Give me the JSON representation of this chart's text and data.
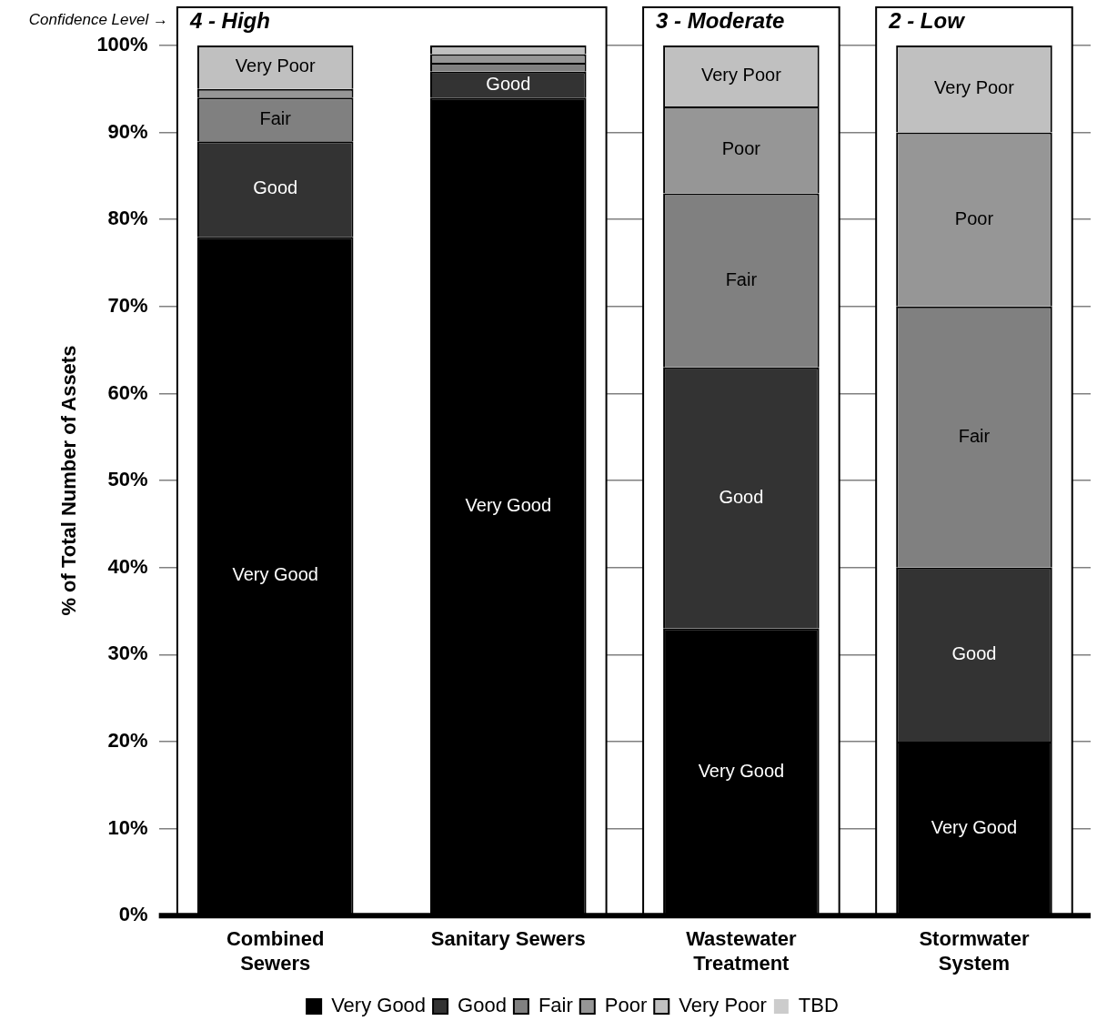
{
  "chart_data": {
    "type": "bar",
    "stacked": true,
    "ylabel": "% of Total Number of Assets",
    "categories": [
      "Combined Sewers",
      "Sanitary Sewers",
      "Wastewater Treatment",
      "Stormwater System"
    ],
    "series": [
      {
        "name": "Very Good",
        "color": "#000000",
        "values": [
          78,
          94,
          33,
          20
        ],
        "value_labels": [
          "Very Good",
          "Very Good",
          "Very Good",
          "Very Good"
        ]
      },
      {
        "name": "Good",
        "color": "#333333",
        "values": [
          11,
          3,
          30,
          20
        ],
        "value_labels": [
          "Good",
          "Good",
          "Good",
          "Good"
        ]
      },
      {
        "name": "Fair",
        "color": "#808080",
        "values": [
          5,
          1,
          20,
          30
        ],
        "value_labels": [
          "Fair",
          null,
          "Fair",
          "Fair"
        ]
      },
      {
        "name": "Poor",
        "color": "#969696",
        "values": [
          1,
          1,
          10,
          20
        ],
        "value_labels": [
          null,
          null,
          "Poor",
          "Poor"
        ]
      },
      {
        "name": "Very Poor",
        "color": "#c0c0c0",
        "values": [
          5,
          1,
          7,
          10
        ],
        "value_labels": [
          "Very Poor",
          null,
          "Very Poor",
          "Very Poor"
        ]
      },
      {
        "name": "TBD",
        "color": "#cccccc",
        "values": [
          0,
          0,
          0,
          0
        ]
      }
    ],
    "ylim": [
      0,
      100
    ],
    "yticks": [
      {
        "value": 0,
        "label": "0%"
      },
      {
        "value": 10,
        "label": "10%"
      },
      {
        "value": 20,
        "label": "20%"
      },
      {
        "value": 30,
        "label": "30%"
      },
      {
        "value": 40,
        "label": "40%"
      },
      {
        "value": 50,
        "label": "50%"
      },
      {
        "value": 60,
        "label": "60%"
      },
      {
        "value": 70,
        "label": "70%"
      },
      {
        "value": 80,
        "label": "80%"
      },
      {
        "value": 90,
        "label": "90%"
      },
      {
        "value": 100,
        "label": "100%"
      }
    ],
    "grid": "y",
    "legend": "bottom",
    "bands": [
      {
        "axis": "x",
        "from": "Combined Sewers",
        "to": "Sanitary Sewers",
        "label": "4 - High"
      },
      {
        "axis": "x",
        "from": "Wastewater Treatment",
        "to": "Wastewater Treatment",
        "label": "3 - Moderate"
      },
      {
        "axis": "x",
        "from": "Stormwater System",
        "to": "Stormwater System",
        "label": "2 - Low"
      }
    ],
    "annotations": [
      "Confidence Level →"
    ]
  }
}
